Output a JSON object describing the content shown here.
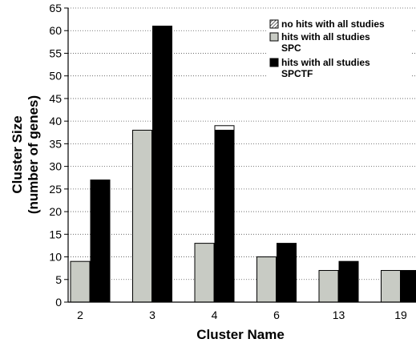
{
  "chart_data": {
    "type": "bar",
    "stacked": true,
    "title": "",
    "xlabel": "Cluster Name",
    "ylabel_line1": "Cluster Size",
    "ylabel_line2": "(number of genes)",
    "ylim": [
      0,
      65
    ],
    "yticks": [
      0,
      5,
      10,
      15,
      20,
      25,
      30,
      35,
      40,
      45,
      50,
      55,
      60,
      65
    ],
    "grid": "horizontal dotted",
    "legend_position": "top-right",
    "categories": [
      "2",
      "3",
      "4",
      "6",
      "13",
      "19"
    ],
    "bars": [
      {
        "category": "2",
        "kind": "SPC",
        "hits": 9,
        "no_hits": 0
      },
      {
        "category": "2",
        "kind": "SPCTF",
        "hits": 27,
        "no_hits": 0
      },
      {
        "category": "3",
        "kind": "SPC",
        "hits": 38,
        "no_hits": 0
      },
      {
        "category": "3",
        "kind": "SPCTF",
        "hits": 61,
        "no_hits": 0
      },
      {
        "category": "4",
        "kind": "SPC",
        "hits": 13,
        "no_hits": 0
      },
      {
        "category": "4",
        "kind": "SPCTF",
        "hits": 38,
        "no_hits": 1
      },
      {
        "category": "6",
        "kind": "SPC",
        "hits": 10,
        "no_hits": 0
      },
      {
        "category": "6",
        "kind": "SPCTF",
        "hits": 13,
        "no_hits": 0
      },
      {
        "category": "13",
        "kind": "SPC",
        "hits": 7,
        "no_hits": 0
      },
      {
        "category": "13",
        "kind": "SPCTF",
        "hits": 9,
        "no_hits": 0
      },
      {
        "category": "19",
        "kind": "SPC",
        "hits": 7,
        "no_hits": 0
      },
      {
        "category": "19",
        "kind": "SPCTF",
        "hits": 7,
        "no_hits": 0
      }
    ],
    "legend": [
      {
        "key": "no_hits",
        "lines": [
          "no hits with all studies"
        ],
        "style": "hatched"
      },
      {
        "key": "SPC",
        "lines": [
          "hits with all studies",
          "SPC"
        ],
        "color": "#c8cbc4"
      },
      {
        "key": "SPCTF",
        "lines": [
          "hits with all studies",
          "SPCTF"
        ],
        "color": "#000000"
      }
    ],
    "colors": {
      "SPC": "#c8cbc4",
      "SPCTF": "#000000",
      "no_hits": "#ffffff",
      "grid": "#555555",
      "axis": "#000000"
    }
  }
}
